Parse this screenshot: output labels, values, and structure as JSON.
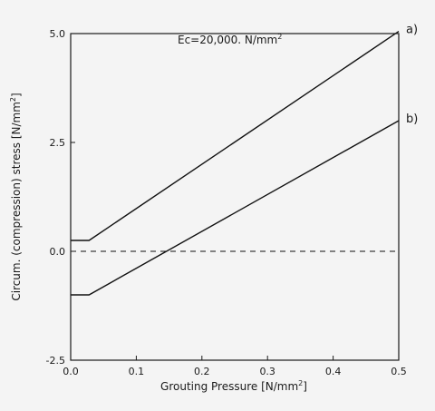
{
  "chart_data": {
    "type": "line",
    "title": "",
    "annotation": "Ec=20,000. N/mm",
    "annotation_sup": "2",
    "xlabel": "Grouting Pressure [N/mm",
    "xlabel_sup": "2",
    "xlabel_end": "]",
    "ylabel": "Circum. (compression) stress [N/mm",
    "ylabel_sup": "2",
    "ylabel_end": "]",
    "xlim": [
      0.0,
      0.5
    ],
    "ylim": [
      -2.5,
      5.0
    ],
    "xticks": [
      "0.0",
      "0.1",
      "0.2",
      "0.3",
      "0.4",
      "0.5"
    ],
    "yticks": [
      "-2.5",
      "0.0",
      "2.5",
      "5.0"
    ],
    "series": [
      {
        "name": "a)",
        "x": [
          0.0,
          0.028,
          0.5
        ],
        "y": [
          0.25,
          0.25,
          5.05
        ],
        "style": "solid"
      },
      {
        "name": "b)",
        "x": [
          0.0,
          0.028,
          0.5
        ],
        "y": [
          -1.0,
          -1.0,
          3.0
        ],
        "style": "solid"
      },
      {
        "name": "",
        "x": [
          0.0,
          0.5
        ],
        "y": [
          0.0,
          0.0
        ],
        "style": "dashed"
      }
    ]
  }
}
